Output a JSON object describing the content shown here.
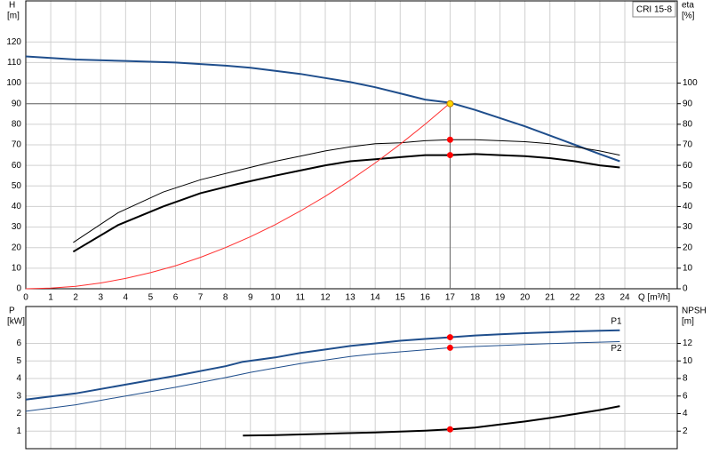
{
  "chart_data": [
    {
      "type": "line",
      "title": "CRI 15-8",
      "y_label": [
        "H",
        "[m]"
      ],
      "y2_label": [
        "eta",
        "[%]"
      ],
      "x_label": "Q [m³/h]",
      "xlim": [
        0,
        26.1
      ],
      "xticks": [
        0,
        1,
        2,
        3,
        4,
        5,
        6,
        7,
        8,
        9,
        10,
        11,
        12,
        13,
        14,
        15,
        16,
        17,
        18,
        19,
        20,
        21,
        22,
        23,
        24
      ],
      "ylim": [
        0,
        140
      ],
      "yticks": [
        0,
        10,
        20,
        30,
        40,
        50,
        60,
        70,
        80,
        90,
        100,
        110,
        120
      ],
      "y2lim": [
        0,
        140
      ],
      "y2ticks": [
        0,
        10,
        20,
        30,
        40,
        50,
        60,
        70,
        80,
        90,
        100
      ],
      "grid": true,
      "guide": {
        "x": 17,
        "y": 90
      },
      "series": [
        {
          "color": "#1f4e8c",
          "width": 2,
          "x": [
            0,
            2,
            4,
            6,
            8,
            9,
            10,
            11,
            12,
            13,
            14,
            15,
            16,
            17,
            18,
            19,
            20,
            21,
            22,
            23,
            23.8
          ],
          "values": [
            113,
            111.5,
            110.8,
            110,
            108.5,
            107.5,
            106,
            104.5,
            102.5,
            100.5,
            98,
            95,
            92,
            90.5,
            87,
            83,
            79,
            74.5,
            70,
            65.5,
            62
          ]
        },
        {
          "color": "#000000",
          "width": 1,
          "axis": "y2",
          "x": [
            1.9,
            3.7,
            5.5,
            7,
            8.5,
            10,
            11,
            12,
            13,
            14,
            15,
            16,
            17,
            18,
            19,
            20,
            21,
            22,
            23,
            23.8
          ],
          "values": [
            22.5,
            37,
            47,
            53,
            57.5,
            62,
            64.5,
            67,
            69,
            70.5,
            71,
            72,
            72.5,
            72.5,
            72,
            71.5,
            70.5,
            69,
            67,
            65
          ]
        },
        {
          "color": "#000000",
          "width": 2,
          "axis": "y2",
          "x": [
            1.9,
            3.7,
            5.5,
            7,
            8.5,
            10,
            11,
            12,
            13,
            14,
            15,
            16,
            17,
            18,
            19,
            20,
            21,
            22,
            23,
            23.8
          ],
          "values": [
            18,
            31,
            40,
            46.5,
            51,
            55,
            57.5,
            60,
            62,
            63,
            64,
            65,
            65,
            65.5,
            65,
            64.5,
            63.5,
            62,
            60,
            59
          ]
        },
        {
          "color": "#ff3030",
          "width": 1,
          "x": [
            0,
            1,
            2,
            3,
            4,
            5,
            6,
            7,
            8,
            9,
            10,
            11,
            12,
            13,
            14,
            15,
            16,
            17
          ],
          "values": [
            0,
            0.3,
            1.2,
            2.8,
            5,
            7.8,
            11.2,
            15.3,
            20,
            25.3,
            31.2,
            37.8,
            45,
            52.8,
            61.2,
            70.3,
            80,
            90.3
          ]
        }
      ],
      "points": [
        {
          "x": 17,
          "y": 90,
          "color": "#ffd700"
        },
        {
          "x": 17,
          "y": 72.5,
          "axis": "y2",
          "color": "#ff0000"
        },
        {
          "x": 17,
          "y": 65,
          "axis": "y2",
          "color": "#ff0000"
        }
      ]
    },
    {
      "type": "line",
      "y_label": [
        "P",
        "[kW]"
      ],
      "y2_label": [
        "NPSH",
        "[m]"
      ],
      "xlim": [
        0,
        26.1
      ],
      "xticks": [
        0,
        1,
        2,
        3,
        4,
        5,
        6,
        7,
        8,
        9,
        10,
        11,
        12,
        13,
        14,
        15,
        16,
        17,
        18,
        19,
        20,
        21,
        22,
        23,
        24
      ],
      "ylim": [
        0,
        8.1
      ],
      "yticks": [
        1,
        2,
        3,
        4,
        5,
        6
      ],
      "y2lim": [
        0,
        16.2
      ],
      "y2ticks": [
        2,
        4,
        6,
        8,
        10,
        12
      ],
      "grid": true,
      "series": [
        {
          "name": "P1",
          "color": "#1f4e8c",
          "width": 2,
          "x": [
            0,
            2,
            4,
            6,
            8,
            8.7,
            10,
            11,
            12,
            13,
            14,
            15,
            16,
            17,
            18,
            19,
            20,
            21,
            22,
            23,
            23.8
          ],
          "values": [
            2.8,
            3.15,
            3.65,
            4.15,
            4.7,
            4.95,
            5.2,
            5.45,
            5.65,
            5.85,
            6,
            6.15,
            6.25,
            6.35,
            6.45,
            6.52,
            6.58,
            6.63,
            6.68,
            6.72,
            6.75
          ]
        },
        {
          "name": "P2",
          "color": "#1f4e8c",
          "width": 1,
          "x": [
            0,
            2,
            4,
            6,
            8,
            9,
            10,
            11,
            12,
            13,
            14,
            15,
            16,
            17,
            18,
            19,
            20,
            21,
            22,
            23,
            23.8
          ],
          "values": [
            2.13,
            2.5,
            3,
            3.5,
            4.05,
            4.35,
            4.6,
            4.85,
            5.05,
            5.25,
            5.4,
            5.52,
            5.63,
            5.75,
            5.82,
            5.88,
            5.94,
            5.99,
            6.03,
            6.07,
            6.1
          ]
        },
        {
          "color": "#000000",
          "width": 2,
          "axis": "y2",
          "x": [
            8.7,
            10,
            12,
            14,
            16,
            17,
            18,
            19,
            20,
            21,
            22,
            23,
            23.8
          ],
          "values": [
            1.5,
            1.55,
            1.7,
            1.85,
            2.05,
            2.2,
            2.4,
            2.75,
            3.1,
            3.5,
            3.95,
            4.4,
            4.85
          ]
        }
      ],
      "points": [
        {
          "x": 17,
          "y": 6.35,
          "color": "#ff0000"
        },
        {
          "x": 17,
          "y": 5.75,
          "color": "#ff0000"
        },
        {
          "x": 17,
          "y": 2.2,
          "axis": "y2",
          "color": "#ff0000"
        }
      ]
    }
  ]
}
